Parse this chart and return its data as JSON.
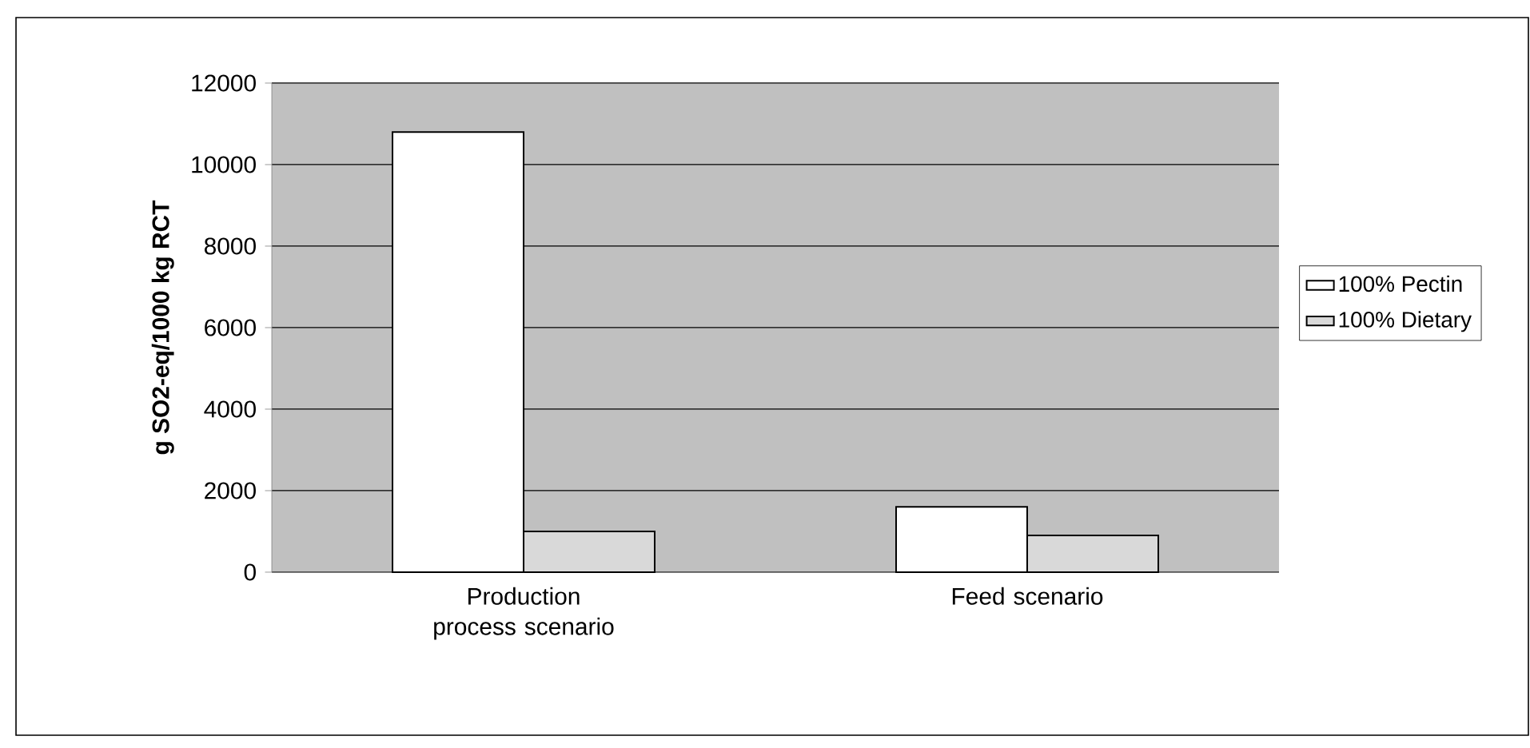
{
  "chart_data": {
    "type": "bar",
    "ylabel": "g SO2-eq/1000 kg RCT",
    "categories": [
      "Production process scenario",
      "Feed scenario"
    ],
    "series": [
      {
        "name": "100% Pectin",
        "color": "#ffffff",
        "values": [
          10800,
          1600
        ]
      },
      {
        "name": "100% Dietary",
        "color": "#d9d9d9",
        "values": [
          1000,
          900
        ]
      }
    ],
    "ylim": [
      0,
      12000
    ],
    "yticks": [
      0,
      2000,
      4000,
      6000,
      8000,
      10000,
      12000
    ],
    "grid": "y",
    "legend": "right"
  }
}
